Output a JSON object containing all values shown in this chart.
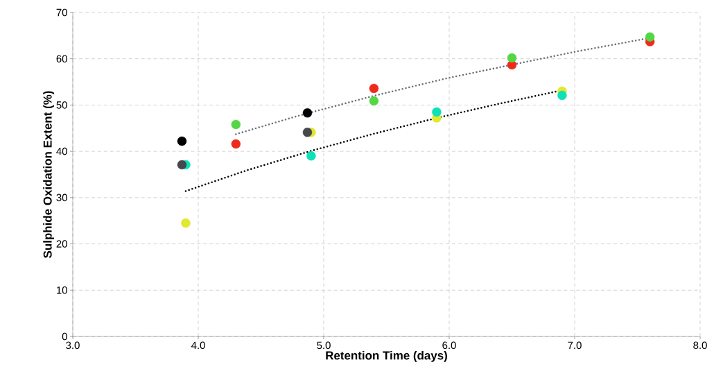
{
  "chart_data": {
    "type": "scatter",
    "xlabel": "Retention Time (days)",
    "ylabel": "Sulphide Oxidation Extent (%)",
    "xlim": [
      3,
      8
    ],
    "ylim": [
      0,
      70
    ],
    "xticks": [
      {
        "value": 3,
        "label": "3.0"
      },
      {
        "value": 4,
        "label": "4.0"
      },
      {
        "value": 5,
        "label": "5.0"
      },
      {
        "value": 6,
        "label": "6.0"
      },
      {
        "value": 7,
        "label": "7.0"
      },
      {
        "value": 8,
        "label": "8.0"
      }
    ],
    "yticks": [
      0,
      10,
      20,
      30,
      40,
      50,
      60,
      70
    ],
    "grid": true,
    "series": [
      {
        "color": "#e1e82d",
        "x": [
          3.9,
          4.9,
          5.9,
          6.9
        ],
        "values": [
          24.5,
          44.1,
          47.2,
          53.0
        ]
      },
      {
        "color": "#0ee0b8",
        "x": [
          3.9,
          4.9,
          5.9,
          6.9
        ],
        "values": [
          37.1,
          39.0,
          48.5,
          52.1
        ]
      },
      {
        "color": "#000000",
        "x": [
          3.87,
          4.87
        ],
        "values": [
          42.2,
          48.3
        ]
      },
      {
        "color": "#45474d",
        "x": [
          3.87,
          4.87
        ],
        "values": [
          37.1,
          44.1
        ]
      },
      {
        "color": "#ee2a1a",
        "x": [
          4.3,
          5.4,
          6.5,
          7.6
        ],
        "values": [
          41.6,
          53.6,
          58.7,
          63.7
        ]
      },
      {
        "color": "#55d644",
        "x": [
          4.3,
          5.4,
          6.5,
          7.6
        ],
        "values": [
          45.8,
          50.9,
          60.2,
          64.7
        ]
      },
      {
        "type": "line",
        "line_style": "dotted",
        "marker": "none",
        "color": "#6d7078",
        "x": [
          4.3,
          4.8,
          5.4,
          6.0,
          6.5,
          7.0,
          7.6
        ],
        "values": [
          43.7,
          47.7,
          52.0,
          55.9,
          58.7,
          61.5,
          64.5
        ]
      },
      {
        "type": "line",
        "line_style": "dotted",
        "marker": "none",
        "color": "#000000",
        "x": [
          3.9,
          4.4,
          4.9,
          5.4,
          5.9,
          6.4,
          6.9
        ],
        "values": [
          31.4,
          36.0,
          40.1,
          43.8,
          47.2,
          50.3,
          53.2
        ]
      }
    ]
  }
}
